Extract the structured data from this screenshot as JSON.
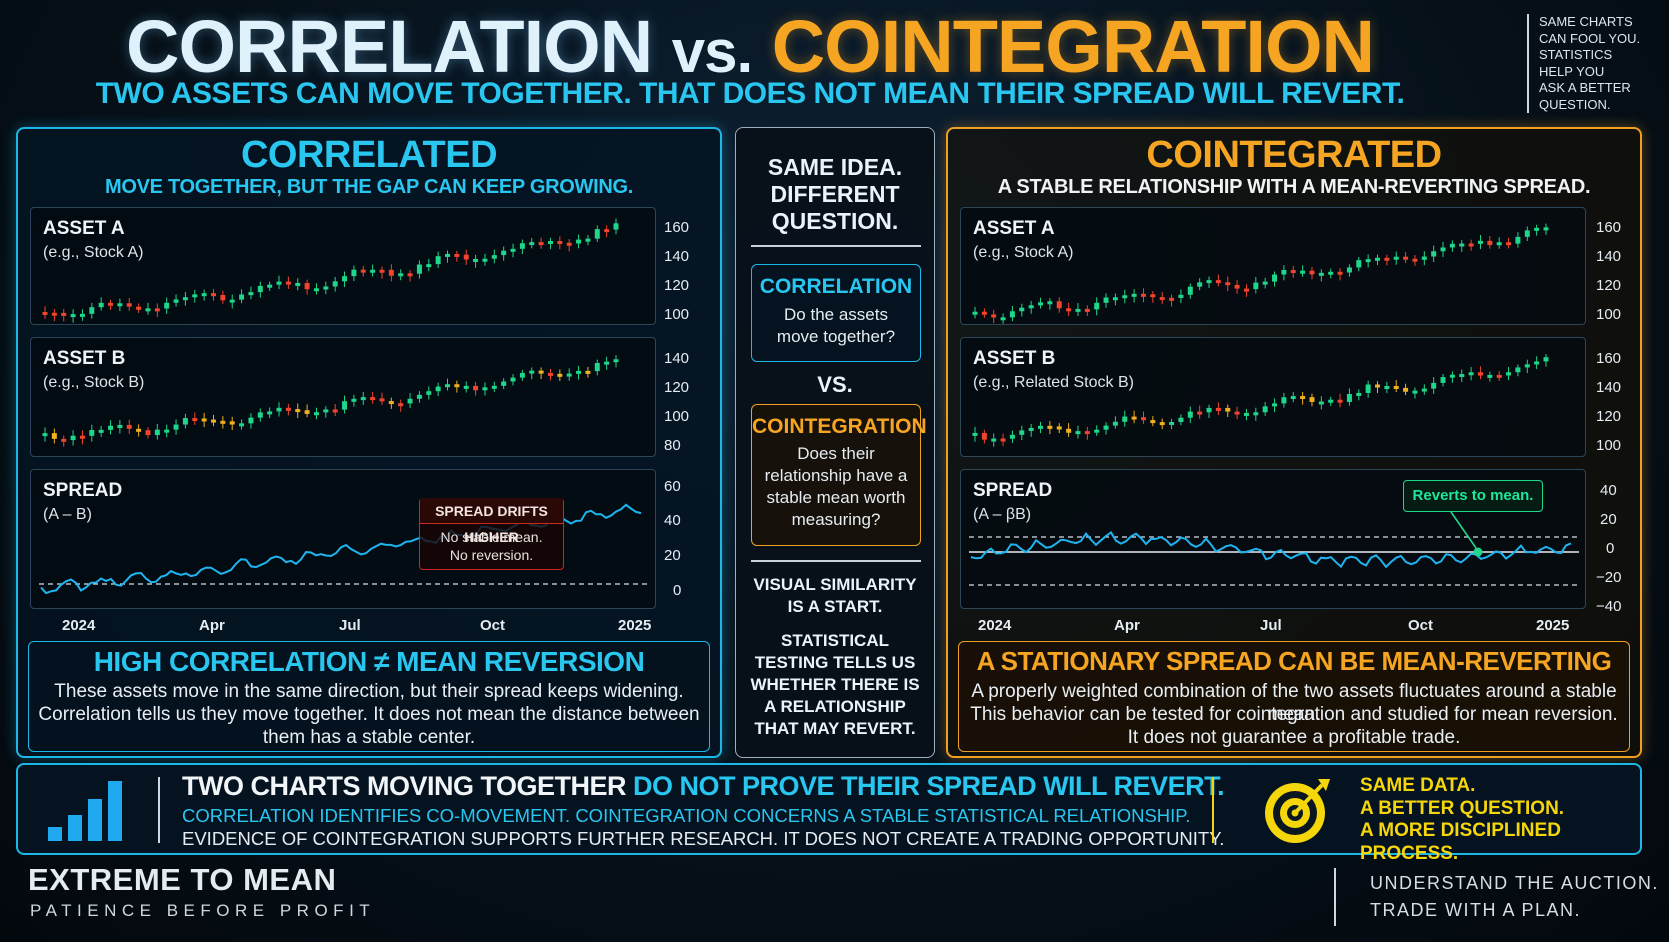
{
  "header": {
    "title_a": "CORRELATION",
    "title_vs": "vs.",
    "title_b": "COINTEGRATION",
    "subtitle": "TWO ASSETS CAN MOVE TOGETHER. THAT DOES NOT MEAN THEIR SPREAD WILL REVERT.",
    "side_note": [
      "SAME CHARTS",
      "CAN FOOL YOU.",
      "STATISTICS",
      "HELP YOU",
      "ASK A BETTER",
      "QUESTION."
    ]
  },
  "left": {
    "title": "CORRELATED",
    "subtitle": "MOVE TOGETHER, BUT THE GAP CAN KEEP GROWING.",
    "asset_a": {
      "label": "ASSET A",
      "sub": "(e.g., Stock A)",
      "ticks": [
        "160",
        "140",
        "120",
        "100"
      ]
    },
    "asset_b": {
      "label": "ASSET B",
      "sub": "(e.g., Stock B)",
      "ticks": [
        "140",
        "120",
        "100",
        "80"
      ]
    },
    "spread": {
      "label": "SPREAD",
      "sub": "(A – B)",
      "ticks": [
        "60",
        "40",
        "20",
        "0"
      ],
      "callout_title": "SPREAD DRIFTS HIGHER",
      "callout_l1": "No stable mean.",
      "callout_l2": "No reversion."
    },
    "x_ticks": [
      "2024",
      "Apr",
      "Jul",
      "Oct",
      "2025"
    ],
    "note_title": "HIGH CORRELATION ≠ MEAN REVERSION",
    "note_l1": "These assets move in the same direction, but their spread keeps widening.",
    "note_l2": "Correlation tells us they move together. It does not mean the distance between",
    "note_l3": "them has a stable center."
  },
  "middle": {
    "q1": "SAME IDEA.",
    "q2": "DIFFERENT",
    "q3": "QUESTION.",
    "corr_title": "CORRELATION",
    "corr_l1": "Do the assets",
    "corr_l2": "move together?",
    "vs": "VS.",
    "coint_title": "COINTEGRATION",
    "coint_l1": "Does their",
    "coint_l2": "relationship have a",
    "coint_l3": "stable mean worth",
    "coint_l4": "measuring?",
    "vis_l1": "VISUAL SIMILARITY",
    "vis_l2": "IS A START.",
    "stat_l1": "STATISTICAL",
    "stat_l2": "TESTING TELLS US",
    "stat_l3": "WHETHER THERE IS",
    "stat_l4": "A RELATIONSHIP",
    "stat_l5": "THAT MAY REVERT."
  },
  "right": {
    "title": "COINTEGRATED",
    "subtitle": "A STABLE RELATIONSHIP WITH A MEAN-REVERTING SPREAD.",
    "asset_a": {
      "label": "ASSET A",
      "sub": "(e.g., Stock A)",
      "ticks": [
        "160",
        "140",
        "120",
        "100"
      ]
    },
    "asset_b": {
      "label": "ASSET B",
      "sub": "(e.g., Related Stock B)",
      "ticks": [
        "160",
        "140",
        "120",
        "100"
      ]
    },
    "spread": {
      "label": "SPREAD",
      "sub": "(A – βB)",
      "ticks": [
        "40",
        "20",
        "0",
        "−20",
        "−40"
      ],
      "callout": "Reverts to mean."
    },
    "x_ticks": [
      "2024",
      "Apr",
      "Jul",
      "Oct",
      "2025"
    ],
    "note_title": "A STATIONARY SPREAD CAN BE MEAN-REVERTING",
    "note_l1": "A properly weighted combination of the two assets fluctuates around a stable mean.",
    "note_l2": "This behavior can be tested for cointegration and studied for mean reversion.",
    "note_l3": "It does not guarantee a profitable trade."
  },
  "bottom": {
    "line1_white": "TWO CHARTS MOVING TOGETHER",
    "line1_blue": "DO NOT PROVE THEIR SPREAD WILL REVERT.",
    "line2": "CORRELATION IDENTIFIES CO-MOVEMENT. COINTEGRATION CONCERNS A STABLE STATISTICAL RELATIONSHIP.",
    "line3": "EVIDENCE OF COINTEGRATION SUPPORTS FURTHER RESEARCH. IT DOES NOT CREATE A TRADING OPPORTUNITY.",
    "right_l1": "SAME DATA.",
    "right_l2": "A BETTER QUESTION.",
    "right_l3": "A MORE DISCIPLINED PROCESS."
  },
  "brand": {
    "name": "EXTREME TO MEAN",
    "tagline": "PATIENCE BEFORE PROFIT"
  },
  "footer": {
    "l1": "UNDERSTAND THE AUCTION.",
    "l2": "TRADE WITH A PLAN."
  },
  "icons": {
    "bars": "bar-chart-icon",
    "target": "target-icon"
  },
  "colors": {
    "cyan": "#1bb7e6",
    "orange": "#f0a020",
    "yellow": "#f5d60a",
    "up": "#1fd68b",
    "down": "#f0442c",
    "mid": "#f0b020"
  }
}
